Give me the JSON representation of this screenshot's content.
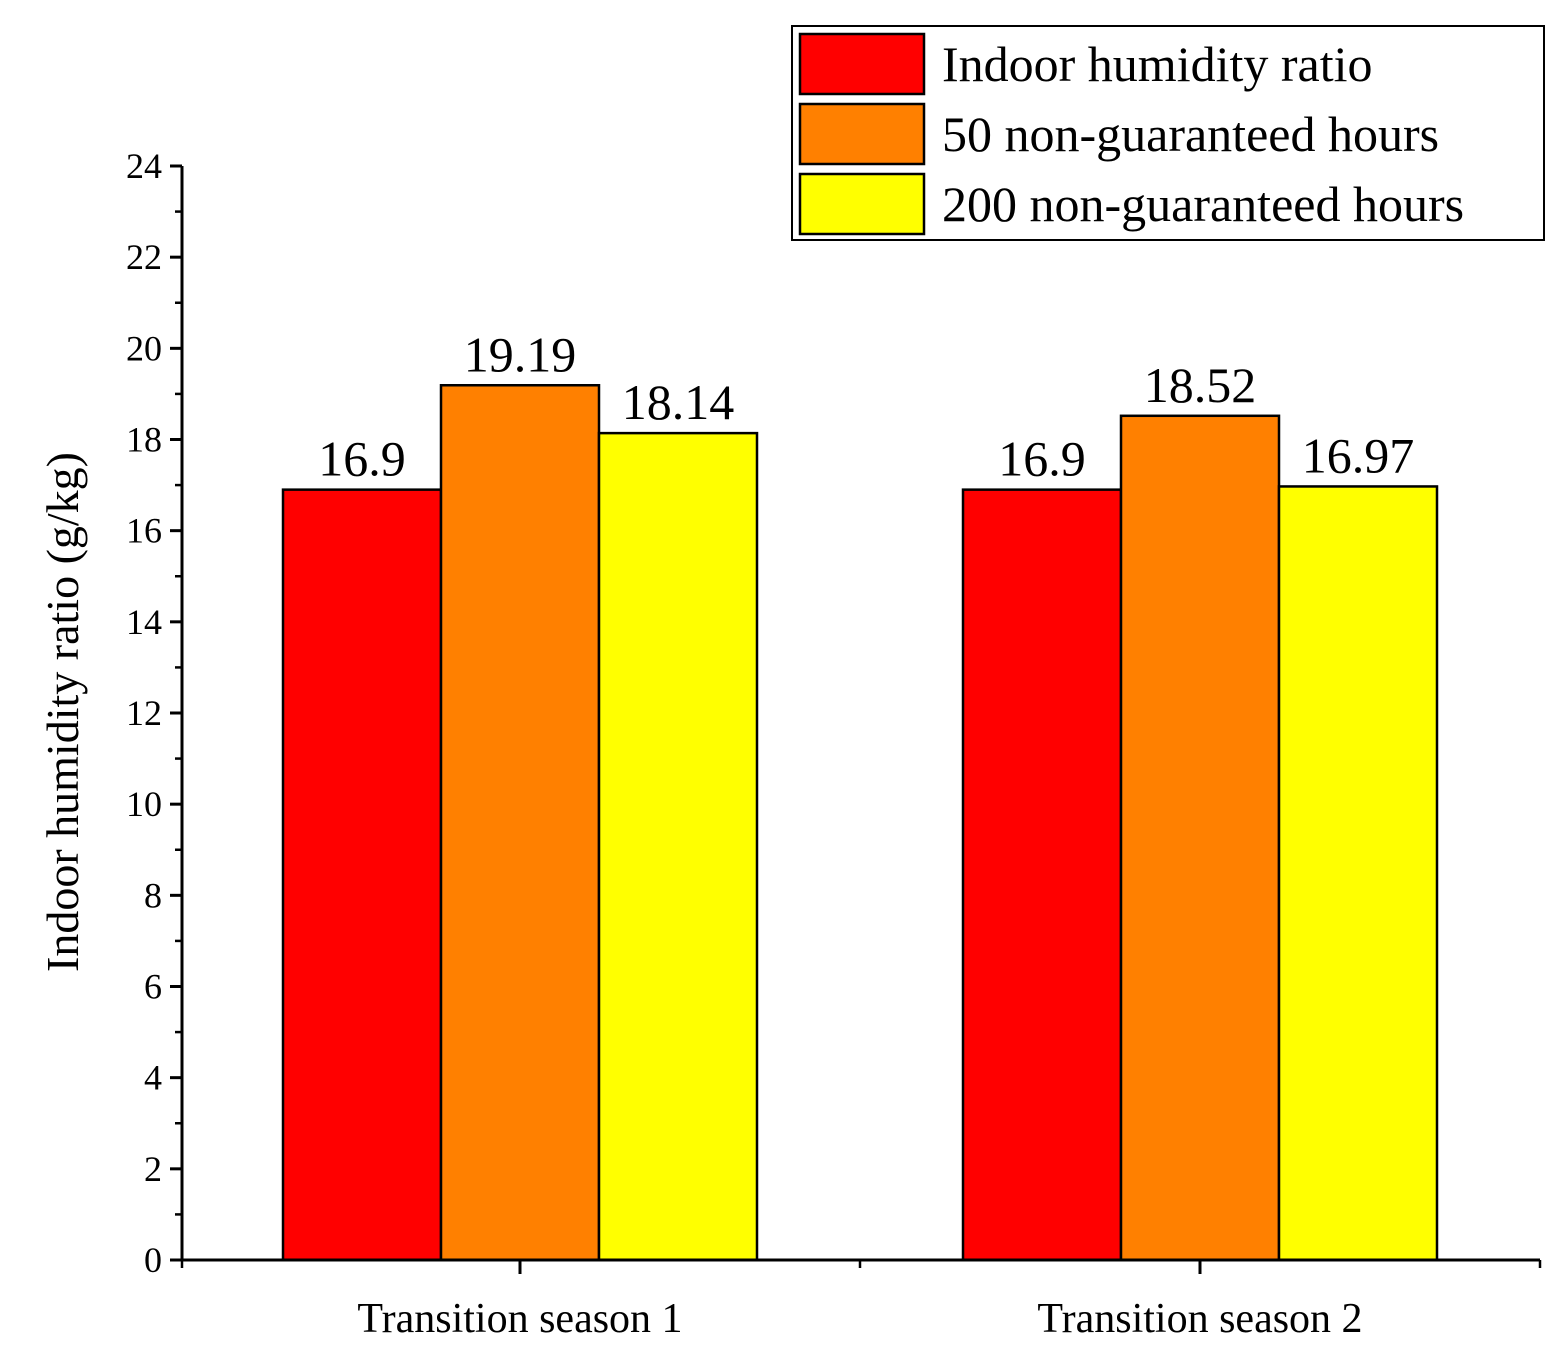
{
  "chart_data": {
    "type": "bar",
    "title": "",
    "xlabel": "",
    "ylabel": "Indoor humidity ratio (g/kg)",
    "ylim": [
      0,
      24
    ],
    "yticks": [
      0,
      2,
      4,
      6,
      8,
      10,
      12,
      14,
      16,
      18,
      20,
      22,
      24
    ],
    "categories": [
      "Transition season 1",
      "Transition season 2"
    ],
    "series": [
      {
        "name": "Indoor humidity ratio",
        "color": "#ff0000",
        "values": [
          16.9,
          16.9
        ],
        "labels": [
          "16.9",
          "16.9"
        ]
      },
      {
        "name": "50 non-guaranteed hours",
        "color": "#ff8000",
        "values": [
          19.19,
          18.52
        ],
        "labels": [
          "19.19",
          "18.52"
        ]
      },
      {
        "name": "200 non-guaranteed hours",
        "color": "#ffff00",
        "values": [
          18.14,
          16.97
        ],
        "labels": [
          "18.14",
          "16.97"
        ]
      }
    ],
    "legend": "top-right",
    "grid": false
  }
}
